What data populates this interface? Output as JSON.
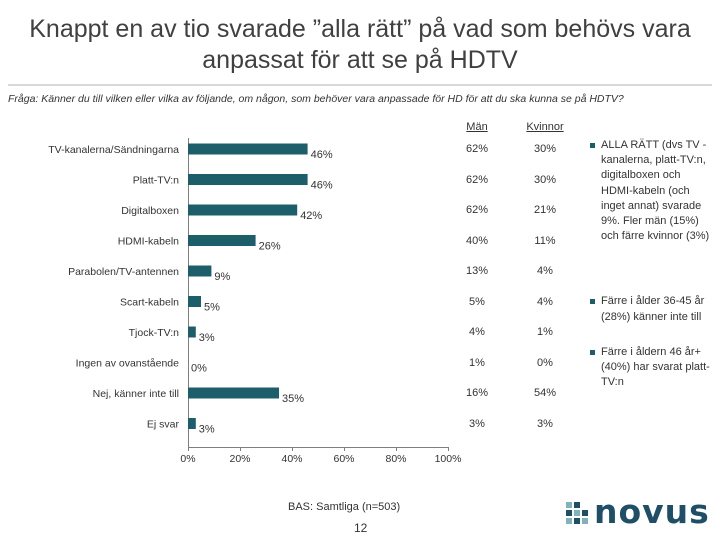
{
  "title": {
    "line1": "Knappt en av tio svarade ”alla rätt” på vad som behövs vara",
    "line2": "anpassat för att se på HDTV"
  },
  "question": "Fråga: Känner du till vilken eller vilka av följande, om någon, som behöver vara anpassade för HD för att du ska kunna se på HDTV?",
  "columns": {
    "men_header": "Män",
    "women_header": "Kvinnor"
  },
  "chart_data": {
    "type": "bar",
    "orientation": "horizontal",
    "categories": [
      "TV-kanalerna/Sändningarna",
      "Platt-TV:n",
      "Digitalboxen",
      "HDMI-kabeln",
      "Parabolen/TV-antennen",
      "Scart-kabeln",
      "Tjock-TV:n",
      "Ingen av ovanstående",
      "Nej, känner inte till",
      "Ej svar"
    ],
    "values": [
      46,
      46,
      42,
      26,
      9,
      5,
      3,
      0,
      35,
      3
    ],
    "value_labels": [
      "46%",
      "46%",
      "42%",
      "26%",
      "9%",
      "5%",
      "3%",
      "0%",
      "35%",
      "3%"
    ],
    "x_ticks": [
      "0%",
      "20%",
      "40%",
      "60%",
      "80%",
      "100%"
    ],
    "xlim": [
      0,
      100
    ],
    "bar_color": "#1c5f6a",
    "men": [
      "62%",
      "62%",
      "62%",
      "40%",
      "13%",
      "5%",
      "4%",
      "1%",
      "16%",
      "3%"
    ],
    "women": [
      "30%",
      "30%",
      "21%",
      "11%",
      "4%",
      "4%",
      "1%",
      "0%",
      "54%",
      "3%"
    ]
  },
  "notes": [
    "ALLA RÄTT (dvs TV -kanalerna, platt-TV:n, digitalboxen och HDMI-kabeln (och inget annat) svarade 9%. Fler män (15%) och färre kvinnor (3%)",
    "Färre i ålder 36-45 år (28%) känner inte till",
    "Färre i åldern 46 år+ (40%) har svarat platt-TV:n"
  ],
  "base": "BAS: Samtliga (n=503)",
  "page_number": "12",
  "logo": {
    "text": "novus",
    "color": "#1f4f66",
    "accent": "#7fb3bd"
  }
}
